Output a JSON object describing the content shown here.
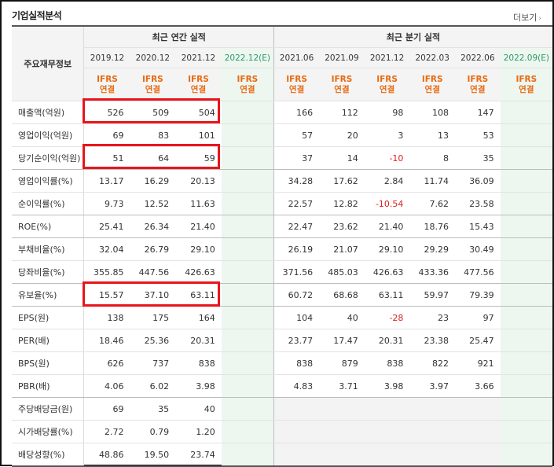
{
  "widget": {
    "title": "기업실적분석",
    "more_label": "더보기",
    "more_icon": "chevron-right-icon"
  },
  "header": {
    "row_label": "주요재무정보",
    "annual_group": "최근 연간 실적",
    "quarter_group": "최근 분기 실적",
    "annual_periods": [
      "2019.12",
      "2020.12",
      "2021.12",
      "2022.12"
    ],
    "annual_est_mark": "(E)",
    "quarter_periods": [
      "2021.06",
      "2021.09",
      "2021.12",
      "2022.03",
      "2022.06",
      "2022.09"
    ],
    "quarter_est_mark": "(E)",
    "standard_top": "IFRS",
    "standard_bottom": "연결"
  },
  "rows": [
    {
      "label": "매출액(억원)",
      "annual": [
        "526",
        "509",
        "504",
        ""
      ],
      "quarter": [
        "166",
        "112",
        "98",
        "108",
        "147",
        ""
      ]
    },
    {
      "label": "영업이익(억원)",
      "annual": [
        "69",
        "83",
        "101",
        ""
      ],
      "quarter": [
        "57",
        "20",
        "3",
        "13",
        "53",
        ""
      ]
    },
    {
      "label": "당기순이익(억원)",
      "annual": [
        "51",
        "64",
        "59",
        ""
      ],
      "quarter": [
        "37",
        "14",
        "-10",
        "8",
        "35",
        ""
      ]
    },
    {
      "label": "영업이익률(%)",
      "annual": [
        "13.17",
        "16.29",
        "20.13",
        ""
      ],
      "quarter": [
        "34.28",
        "17.62",
        "2.84",
        "11.74",
        "36.09",
        ""
      ]
    },
    {
      "label": "순이익률(%)",
      "annual": [
        "9.73",
        "12.52",
        "11.63",
        ""
      ],
      "quarter": [
        "22.57",
        "12.82",
        "-10.54",
        "7.62",
        "23.58",
        ""
      ]
    },
    {
      "label": "ROE(%)",
      "annual": [
        "25.41",
        "26.34",
        "21.40",
        ""
      ],
      "quarter": [
        "22.47",
        "23.62",
        "21.40",
        "18.76",
        "15.43",
        ""
      ]
    },
    {
      "label": "부채비율(%)",
      "annual": [
        "32.04",
        "26.79",
        "29.10",
        ""
      ],
      "quarter": [
        "26.19",
        "21.07",
        "29.10",
        "29.29",
        "30.49",
        ""
      ]
    },
    {
      "label": "당좌비율(%)",
      "annual": [
        "355.85",
        "447.56",
        "426.63",
        ""
      ],
      "quarter": [
        "371.56",
        "485.03",
        "426.63",
        "433.36",
        "477.56",
        ""
      ]
    },
    {
      "label": "유보율(%)",
      "annual": [
        "15.57",
        "37.10",
        "63.11",
        ""
      ],
      "quarter": [
        "60.72",
        "68.68",
        "63.11",
        "59.97",
        "79.39",
        ""
      ]
    },
    {
      "label": "EPS(원)",
      "annual": [
        "138",
        "175",
        "164",
        ""
      ],
      "quarter": [
        "104",
        "40",
        "-28",
        "23",
        "97",
        ""
      ]
    },
    {
      "label": "PER(배)",
      "annual": [
        "18.46",
        "25.36",
        "20.31",
        ""
      ],
      "quarter": [
        "23.77",
        "17.47",
        "20.31",
        "23.38",
        "25.47",
        ""
      ]
    },
    {
      "label": "BPS(원)",
      "annual": [
        "626",
        "737",
        "838",
        ""
      ],
      "quarter": [
        "838",
        "879",
        "838",
        "822",
        "921",
        ""
      ]
    },
    {
      "label": "PBR(배)",
      "annual": [
        "4.06",
        "6.02",
        "3.98",
        ""
      ],
      "quarter": [
        "4.83",
        "3.71",
        "3.98",
        "3.97",
        "3.66",
        ""
      ]
    },
    {
      "label": "주당배당금(원)",
      "annual": [
        "69",
        "35",
        "40",
        ""
      ],
      "quarter": [
        "",
        "",
        "",
        "",
        "",
        ""
      ]
    },
    {
      "label": "시가배당률(%)",
      "annual": [
        "2.72",
        "0.79",
        "1.20",
        ""
      ],
      "quarter": [
        "",
        "",
        "",
        "",
        "",
        ""
      ]
    },
    {
      "label": "배당성향(%)",
      "annual": [
        "48.86",
        "19.50",
        "23.74",
        ""
      ],
      "quarter": [
        "",
        "",
        "",
        "",
        "",
        ""
      ]
    }
  ],
  "highlight_color": "#e8151c",
  "negative_color": "#e02020",
  "standard_color": "#e86a11",
  "estimate_color": "#2a9a66"
}
